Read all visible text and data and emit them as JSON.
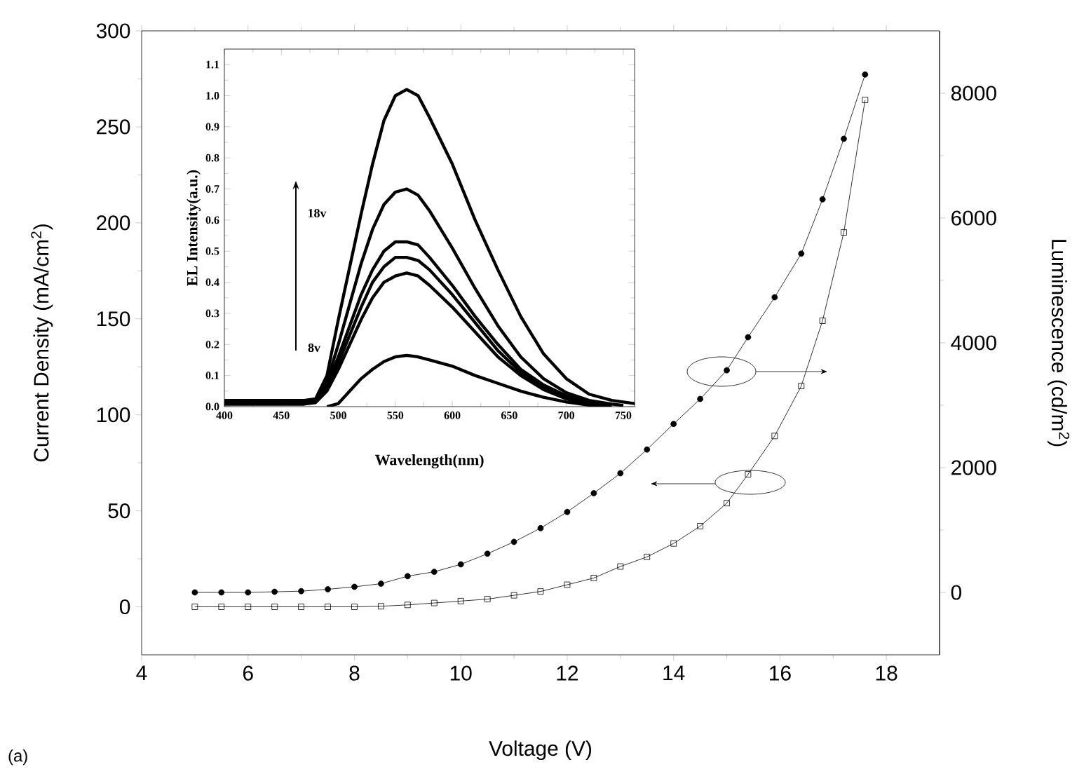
{
  "chart_data": [
    {
      "type": "line",
      "xlabel": "Voltage (V)",
      "ylabel": "Current Density (mA/cm$^{2}$)",
      "y2label": "Luminescence (cd/m$^{2}$)",
      "x": [
        5,
        5.5,
        6,
        6.5,
        7,
        7.5,
        8,
        8.5,
        9,
        9.5,
        10,
        10.5,
        11,
        11.5,
        12,
        12.5,
        13,
        13.5,
        14,
        14.5,
        15,
        15.4,
        15.9,
        16.4,
        16.8,
        17.2,
        17.6
      ],
      "xlim": [
        4,
        19
      ],
      "xticks": [
        4,
        6,
        8,
        10,
        12,
        14,
        16,
        18
      ],
      "ylim": [
        -25,
        300
      ],
      "yticks": [
        0,
        50,
        100,
        150,
        200,
        250,
        300
      ],
      "y2lim": [
        -1000,
        9000
      ],
      "y2ticks": [
        0,
        2000,
        4000,
        6000,
        8000
      ],
      "annotations": [
        "(a)"
      ],
      "series": [
        {
          "color": "#000000",
          "marker": "circle",
          "axis": "y2",
          "values": [
            0,
            0,
            0,
            10,
            20,
            50,
            90,
            140,
            260,
            330,
            450,
            620,
            810,
            1030,
            1290,
            1590,
            1910,
            2290,
            2700,
            3100,
            3560,
            4090,
            4730,
            5430,
            6300,
            7270,
            8300
          ]
        },
        {
          "color": "#000000",
          "marker": "square",
          "axis": "y",
          "values": [
            0,
            0,
            0,
            0,
            0,
            0,
            0,
            0.3,
            1,
            2,
            3,
            4,
            6,
            8,
            11.5,
            15,
            21,
            26,
            33,
            42,
            54,
            69,
            89,
            115,
            149,
            195,
            264
          ]
        }
      ]
    },
    {
      "type": "line",
      "xlabel": "Wavelength(nm)",
      "ylabel": "EL Intensity(a.u.)",
      "x": [
        400,
        470,
        480,
        490,
        500,
        510,
        520,
        530,
        540,
        550,
        560,
        570,
        580,
        600,
        620,
        640,
        660,
        680,
        700,
        720,
        740,
        760
      ],
      "xlim": [
        400,
        760
      ],
      "xticks": [
        400,
        450,
        500,
        550,
        600,
        650,
        700,
        750
      ],
      "ylim": [
        0,
        1.15
      ],
      "yticks": [
        {
          "value": 0,
          "label": "0.0"
        },
        0.1,
        0.2,
        0.3,
        0.4,
        0.5,
        0.6,
        0.7,
        0.8,
        0.9,
        {
          "value": 1,
          "label": "1.0"
        },
        1.1
      ],
      "annotations": [
        "18v",
        "8v"
      ],
      "series": [
        {
          "color": "#000000",
          "values": [
            0.02,
            0.02,
            0.025,
            0.1,
            0.28,
            0.45,
            0.62,
            0.78,
            0.92,
            1.0,
            1.02,
            1.0,
            0.93,
            0.78,
            0.6,
            0.44,
            0.29,
            0.17,
            0.09,
            0.04,
            0.02,
            0.01
          ]
        },
        {
          "color": "#000000",
          "x": [
            400,
            470,
            480,
            490,
            500,
            510,
            520,
            530,
            540,
            550,
            560,
            570,
            580,
            600,
            620,
            640,
            660,
            680,
            700,
            720,
            740,
            750
          ],
          "values": [
            0.017,
            0.017,
            0.022,
            0.08,
            0.2,
            0.33,
            0.46,
            0.57,
            0.65,
            0.69,
            0.7,
            0.68,
            0.63,
            0.51,
            0.38,
            0.26,
            0.16,
            0.09,
            0.045,
            0.02,
            0.008,
            0.004
          ]
        },
        {
          "color": "#000000",
          "x": [
            400,
            470,
            480,
            490,
            500,
            510,
            520,
            530,
            540,
            550,
            560,
            570,
            580,
            600,
            620,
            640,
            660,
            680,
            700,
            720,
            730,
            740
          ],
          "values": [
            0.014,
            0.014,
            0.019,
            0.07,
            0.16,
            0.26,
            0.36,
            0.44,
            0.5,
            0.53,
            0.53,
            0.52,
            0.48,
            0.39,
            0.29,
            0.2,
            0.12,
            0.07,
            0.035,
            0.015,
            0.005,
            0.002
          ]
        },
        {
          "color": "#000000",
          "x": [
            400,
            470,
            480,
            490,
            500,
            510,
            520,
            530,
            540,
            550,
            560,
            570,
            580,
            600,
            620,
            640,
            660,
            680,
            700,
            720,
            730,
            735
          ],
          "values": [
            0.011,
            0.011,
            0.016,
            0.06,
            0.14,
            0.23,
            0.32,
            0.4,
            0.45,
            0.48,
            0.48,
            0.47,
            0.44,
            0.36,
            0.27,
            0.18,
            0.11,
            0.06,
            0.03,
            0.01,
            0.003,
            0.001
          ]
        },
        {
          "color": "#000000",
          "x": [
            400,
            470,
            480,
            490,
            500,
            510,
            520,
            530,
            540,
            550,
            560,
            570,
            580,
            600,
            620,
            640,
            660,
            680,
            700,
            720,
            725,
            730
          ],
          "values": [
            0.008,
            0.008,
            0.013,
            0.05,
            0.12,
            0.2,
            0.28,
            0.35,
            0.4,
            0.42,
            0.43,
            0.42,
            0.39,
            0.32,
            0.24,
            0.16,
            0.1,
            0.055,
            0.025,
            0.008,
            0.001,
            0.0
          ]
        },
        {
          "color": "#000000",
          "x": [
            490,
            500,
            510,
            520,
            530,
            540,
            550,
            560,
            570,
            580,
            600,
            620,
            640,
            660,
            680,
            700,
            720,
            730
          ],
          "values": [
            0.0,
            0.01,
            0.05,
            0.09,
            0.12,
            0.145,
            0.16,
            0.165,
            0.16,
            0.15,
            0.13,
            0.1,
            0.075,
            0.05,
            0.03,
            0.015,
            0.005,
            0.0
          ]
        }
      ]
    }
  ]
}
